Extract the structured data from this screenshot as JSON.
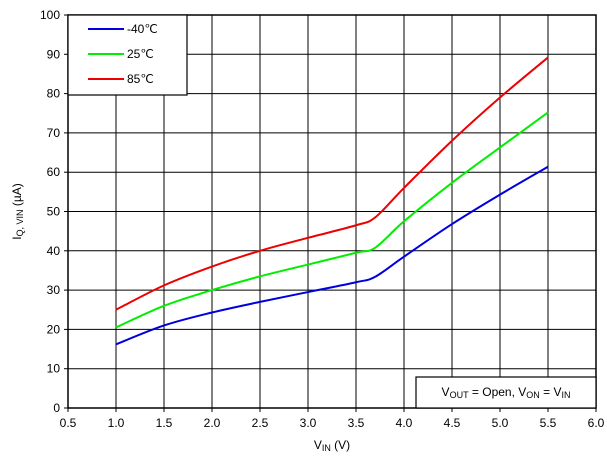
{
  "chart_data": {
    "type": "line",
    "xlabel": {
      "main": "V",
      "sub": "IN",
      "unit": " (V)"
    },
    "ylabel": {
      "main": "I",
      "sub": "Q, VIN",
      "unit": " (µA)"
    },
    "xlim": [
      0.5,
      6.0
    ],
    "ylim": [
      0,
      100
    ],
    "x_ticks": [
      "0.5",
      "1.0",
      "1.5",
      "2.0",
      "2.5",
      "3.0",
      "3.5",
      "4.0",
      "4.5",
      "5.0",
      "5.5",
      "6.0"
    ],
    "y_ticks": [
      "0",
      "10",
      "20",
      "30",
      "40",
      "50",
      "60",
      "70",
      "80",
      "90",
      "100"
    ],
    "grid": true,
    "legend_position": "top-left",
    "annotation": {
      "parts": [
        {
          "t": "V"
        },
        {
          "t": "OUT",
          "sub": true
        },
        {
          "t": " = Open, V"
        },
        {
          "t": "ON",
          "sub": true
        },
        {
          "t": " = V"
        },
        {
          "t": "IN",
          "sub": true
        }
      ]
    },
    "series": [
      {
        "name": "-40℃",
        "color": "#0000dd",
        "x": [
          1.0,
          1.5,
          2.0,
          2.5,
          3.0,
          3.5,
          3.7,
          4.0,
          4.5,
          5.0,
          5.5
        ],
        "y": [
          16.2,
          21.0,
          24.3,
          27.0,
          29.5,
          32.0,
          33.4,
          38.5,
          46.8,
          54.3,
          61.4
        ]
      },
      {
        "name": "25℃",
        "color": "#00ee00",
        "x": [
          1.0,
          1.5,
          2.0,
          2.5,
          3.0,
          3.5,
          3.7,
          4.0,
          4.5,
          5.0,
          5.5
        ],
        "y": [
          20.5,
          26.0,
          30.0,
          33.5,
          36.5,
          39.5,
          40.8,
          47.5,
          57.3,
          66.3,
          75.2
        ]
      },
      {
        "name": "85℃",
        "color": "#ee0000",
        "x": [
          1.0,
          1.5,
          2.0,
          2.5,
          3.0,
          3.5,
          3.7,
          4.0,
          4.5,
          5.0,
          5.5
        ],
        "y": [
          25.0,
          31.2,
          36.0,
          40.0,
          43.3,
          46.5,
          48.5,
          56.0,
          68.0,
          79.0,
          89.2
        ]
      }
    ]
  }
}
